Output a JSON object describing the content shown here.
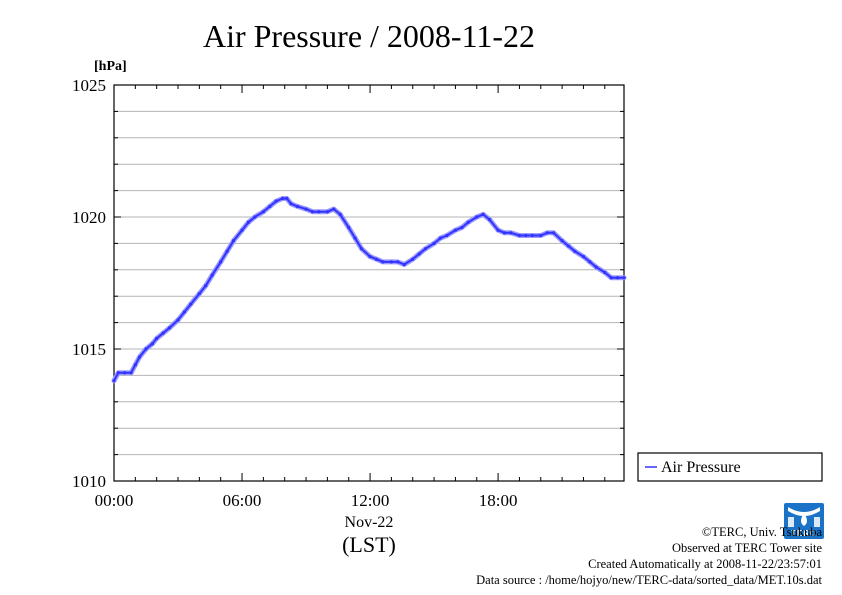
{
  "chart_data": {
    "type": "line",
    "title": "Air Pressure / 2008-11-22",
    "unit_label": "[hPa]",
    "ylim": [
      1010,
      1025
    ],
    "y_major_ticks": [
      1010,
      1015,
      1020,
      1025
    ],
    "y_minor_step": 1,
    "xlim": [
      0,
      23.9
    ],
    "x_ticks": [
      {
        "value": 0,
        "label": "00:00"
      },
      {
        "value": 6,
        "label": "06:00"
      },
      {
        "value": 12,
        "label": "12:00"
      },
      {
        "value": 18,
        "label": "18:00"
      }
    ],
    "x_date_label": "Nov-22",
    "x_axis_label": "(LST)",
    "grid": true,
    "legend_position": "right",
    "series": [
      {
        "name": "Air Pressure",
        "color": "#3333ff",
        "x": [
          0.0,
          0.2,
          0.5,
          0.8,
          1.0,
          1.2,
          1.5,
          1.8,
          2.0,
          2.3,
          2.6,
          3.0,
          3.3,
          3.6,
          4.0,
          4.3,
          4.6,
          5.0,
          5.3,
          5.6,
          6.0,
          6.3,
          6.6,
          7.0,
          7.3,
          7.6,
          7.9,
          8.1,
          8.3,
          8.6,
          9.0,
          9.3,
          9.6,
          10.0,
          10.3,
          10.6,
          11.0,
          11.3,
          11.6,
          12.0,
          12.3,
          12.6,
          13.0,
          13.3,
          13.6,
          14.0,
          14.3,
          14.6,
          15.0,
          15.3,
          15.6,
          16.0,
          16.3,
          16.6,
          17.0,
          17.3,
          17.6,
          18.0,
          18.3,
          18.6,
          19.0,
          19.3,
          19.6,
          20.0,
          20.3,
          20.6,
          21.0,
          21.3,
          21.6,
          22.0,
          22.3,
          22.6,
          23.0,
          23.3,
          23.6,
          23.9
        ],
        "values": [
          1013.8,
          1014.1,
          1014.1,
          1014.1,
          1014.4,
          1014.7,
          1015.0,
          1015.2,
          1015.4,
          1015.6,
          1015.8,
          1016.1,
          1016.4,
          1016.7,
          1017.1,
          1017.4,
          1017.8,
          1018.3,
          1018.7,
          1019.1,
          1019.5,
          1019.8,
          1020.0,
          1020.2,
          1020.4,
          1020.6,
          1020.7,
          1020.7,
          1020.5,
          1020.4,
          1020.3,
          1020.2,
          1020.2,
          1020.2,
          1020.3,
          1020.1,
          1019.6,
          1019.2,
          1018.8,
          1018.5,
          1018.4,
          1018.3,
          1018.3,
          1018.3,
          1018.2,
          1018.4,
          1018.6,
          1018.8,
          1019.0,
          1019.2,
          1019.3,
          1019.5,
          1019.6,
          1019.8,
          1020.0,
          1020.1,
          1019.9,
          1019.5,
          1019.4,
          1019.4,
          1019.3,
          1019.3,
          1019.3,
          1019.3,
          1019.4,
          1019.4,
          1019.1,
          1018.9,
          1018.7,
          1018.5,
          1018.3,
          1018.1,
          1017.9,
          1017.7,
          1017.7,
          1017.7
        ]
      }
    ]
  },
  "footer": {
    "copyright": "©TERC, Univ. Tsukuba",
    "site": "Observed at TERC Tower site",
    "created": "Created Automatically at 2008-11-22/23:57:01",
    "source": "Data source : /home/hojyo/new/TERC-data/sorted_data/MET.10s.dat"
  },
  "logo": {
    "text": "TERC",
    "color": "#1a73c6"
  }
}
